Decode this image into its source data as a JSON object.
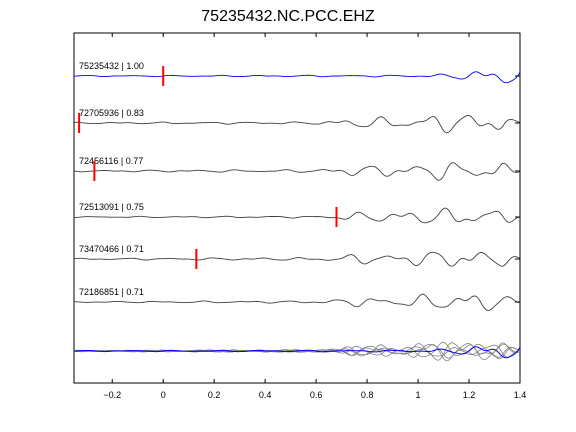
{
  "chart_data": {
    "type": "line",
    "title": "75235432.NC.PCC.EHZ",
    "xlabel": "",
    "ylabel": "",
    "xlim": [
      -0.35,
      1.4
    ],
    "xticks": [
      -0.2,
      0,
      0.2,
      0.4,
      0.6,
      0.8,
      1,
      1.2,
      1.4
    ],
    "xtick_labels": [
      "−0.2",
      "0",
      "0.2",
      "0.4",
      "0.6",
      "0.8",
      "1",
      "1.2",
      "1.4"
    ],
    "grid": false,
    "colors": {
      "master": "#0000ff",
      "trace": "#404040",
      "stack": "#808080",
      "pick": "#ff0000"
    },
    "series": [
      {
        "name": "75235432 | 1.00",
        "color": "#0000ff",
        "pick_time": 0.0,
        "envelope": [
          [
            -0.35,
            0.12
          ],
          [
            0.9,
            0.18
          ],
          [
            1.05,
            0.3
          ],
          [
            1.15,
            0.6
          ],
          [
            1.25,
            1.3
          ],
          [
            1.33,
            2.0
          ],
          [
            1.4,
            2.6
          ]
        ]
      },
      {
        "name": "72705936 | 0.83",
        "color": "#404040",
        "pick_time": -0.33,
        "envelope": [
          [
            -0.35,
            0.15
          ],
          [
            0.6,
            0.25
          ],
          [
            0.75,
            1.1
          ],
          [
            0.95,
            1.2
          ],
          [
            1.05,
            1.7
          ],
          [
            1.2,
            2.2
          ],
          [
            1.33,
            1.8
          ],
          [
            1.4,
            0.2
          ]
        ]
      },
      {
        "name": "72456116 | 0.77",
        "color": "#404040",
        "pick_time": -0.27,
        "envelope": [
          [
            -0.35,
            0.15
          ],
          [
            0.6,
            0.3
          ],
          [
            0.75,
            1.1
          ],
          [
            0.95,
            1.3
          ],
          [
            1.05,
            1.8
          ],
          [
            1.2,
            2.0
          ],
          [
            1.33,
            1.7
          ],
          [
            1.4,
            0.2
          ]
        ]
      },
      {
        "name": "72513091 | 0.75",
        "color": "#404040",
        "pick_time": 0.68,
        "envelope": [
          [
            -0.35,
            0.1
          ],
          [
            0.6,
            0.2
          ],
          [
            0.75,
            0.9
          ],
          [
            0.95,
            1.3
          ],
          [
            1.05,
            1.6
          ],
          [
            1.2,
            2.0
          ],
          [
            1.33,
            1.6
          ],
          [
            1.4,
            0.2
          ]
        ]
      },
      {
        "name": "73470466 | 0.71",
        "color": "#404040",
        "pick_time": 0.13,
        "envelope": [
          [
            -0.35,
            0.15
          ],
          [
            0.6,
            0.3
          ],
          [
            0.75,
            1.0
          ],
          [
            0.95,
            1.2
          ],
          [
            1.05,
            1.7
          ],
          [
            1.2,
            2.0
          ],
          [
            1.33,
            1.6
          ],
          [
            1.4,
            0.2
          ]
        ]
      },
      {
        "name": "72186851 | 0.71",
        "color": "#404040",
        "pick_time": null,
        "envelope": [
          [
            -0.35,
            0.12
          ],
          [
            0.6,
            0.25
          ],
          [
            0.75,
            0.9
          ],
          [
            0.95,
            1.1
          ],
          [
            1.05,
            1.6
          ],
          [
            1.2,
            2.1
          ],
          [
            1.33,
            1.7
          ],
          [
            1.4,
            0.2
          ]
        ]
      }
    ],
    "stack_row": {
      "traces": 5,
      "note": "overlay of all traces with master in blue"
    }
  }
}
